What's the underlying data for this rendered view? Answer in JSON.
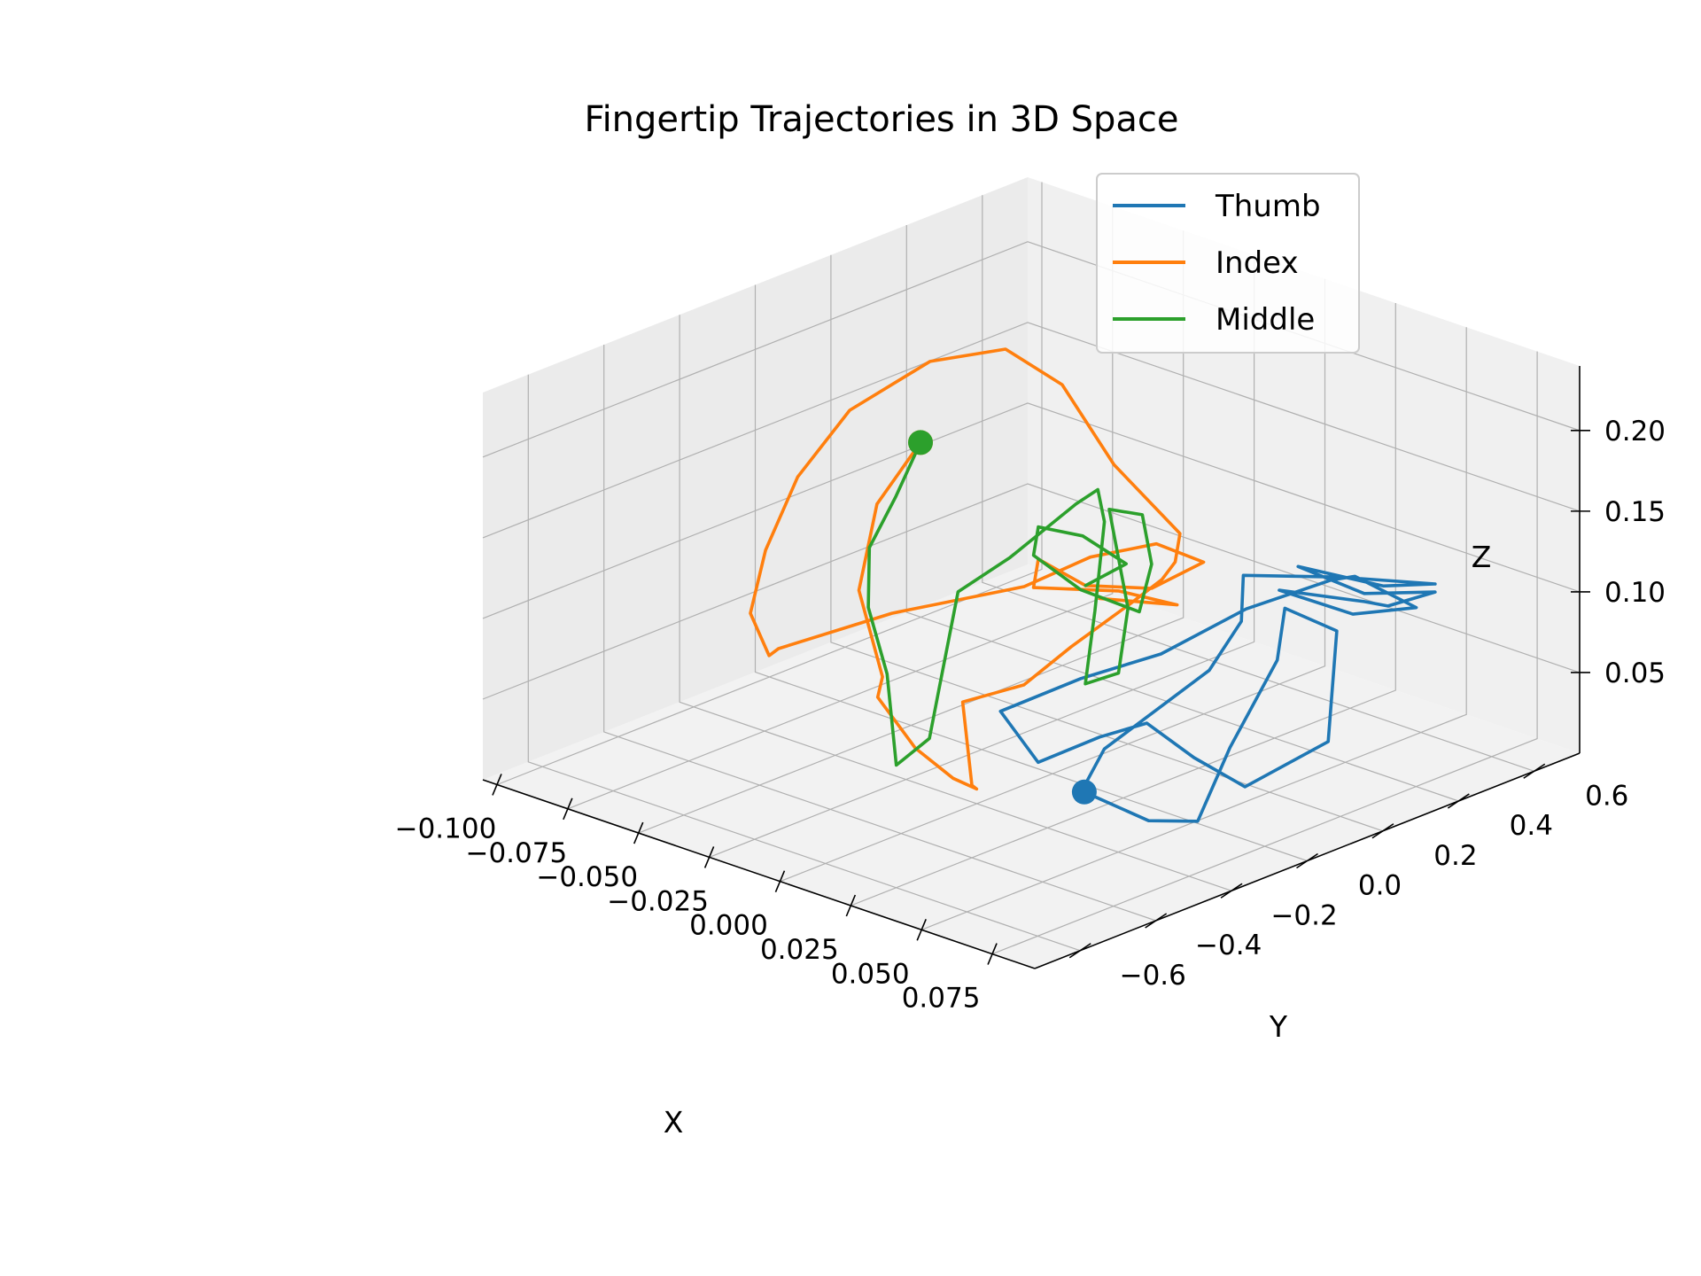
{
  "chart_data": {
    "type": "line",
    "title": "Fingertip Trajectories in 3D Space",
    "xlabel": "X",
    "ylabel": "Y",
    "zlabel": "Z",
    "x_ticks": [
      "−0.100",
      "−0.075",
      "−0.050",
      "−0.025",
      "0.000",
      "0.025",
      "0.050",
      "0.075"
    ],
    "y_ticks": [
      "−0.6",
      "−0.4",
      "−0.2",
      "0.0",
      "0.2",
      "0.4",
      "0.6"
    ],
    "z_ticks": [
      "0.05",
      "0.10",
      "0.15",
      "0.20"
    ],
    "xlim": [
      -0.105,
      0.09
    ],
    "ylim": [
      -0.72,
      0.72
    ],
    "zlim": [
      0.0,
      0.24
    ],
    "grid": true,
    "legend_position": "top-right",
    "series": [
      {
        "name": "Thumb",
        "color": "#1f77b4",
        "points": [
          [
            0.038,
            -0.2,
            0.03
          ],
          [
            0.05,
            -0.12,
            0.012
          ],
          [
            0.058,
            -0.05,
            0.01
          ],
          [
            0.052,
            0.08,
            0.04
          ],
          [
            0.05,
            0.22,
            0.08
          ],
          [
            0.042,
            0.3,
            0.1
          ],
          [
            0.055,
            0.34,
            0.09
          ],
          [
            0.06,
            0.28,
            0.03
          ],
          [
            0.052,
            0.12,
            0.012
          ],
          [
            0.05,
            0.0,
            0.04
          ],
          [
            0.04,
            -0.05,
            0.06
          ],
          [
            0.03,
            -0.1,
            0.05
          ],
          [
            0.015,
            -0.15,
            0.03
          ],
          [
            -0.005,
            -0.1,
            0.045
          ],
          [
            0.01,
            0.0,
            0.065
          ],
          [
            0.025,
            0.1,
            0.08
          ],
          [
            0.035,
            0.25,
            0.1
          ],
          [
            0.045,
            0.4,
            0.11
          ],
          [
            0.04,
            0.5,
            0.1
          ],
          [
            0.055,
            0.55,
            0.085
          ],
          [
            0.05,
            0.42,
            0.09
          ],
          [
            0.04,
            0.3,
            0.11
          ],
          [
            0.05,
            0.45,
            0.095
          ],
          [
            0.045,
            0.55,
            0.08
          ],
          [
            0.055,
            0.6,
            0.09
          ],
          [
            0.05,
            0.45,
            0.1
          ],
          [
            0.04,
            0.35,
            0.12
          ],
          [
            0.05,
            0.5,
            0.1
          ],
          [
            0.055,
            0.6,
            0.095
          ],
          [
            0.045,
            0.42,
            0.11
          ],
          [
            0.03,
            0.28,
            0.115
          ],
          [
            0.04,
            0.2,
            0.1
          ],
          [
            0.042,
            0.1,
            0.08
          ],
          [
            0.025,
            -0.05,
            0.035
          ],
          [
            0.03,
            -0.15,
            0.02
          ],
          [
            0.04,
            -0.2,
            0.03
          ],
          [
            0.038,
            -0.2,
            0.03
          ]
        ]
      },
      {
        "name": "Index",
        "color": "#ff7f0e",
        "points": [
          [
            -0.06,
            0.1,
            0.16
          ],
          [
            -0.062,
            0.0,
            0.13
          ],
          [
            -0.055,
            -0.1,
            0.09
          ],
          [
            -0.04,
            -0.15,
            0.05
          ],
          [
            -0.035,
            -0.2,
            0.045
          ],
          [
            -0.015,
            -0.25,
            0.03
          ],
          [
            0.005,
            -0.3,
            0.028
          ],
          [
            0.02,
            -0.35,
            0.035
          ],
          [
            0.025,
            -0.4,
            0.045
          ],
          [
            -0.005,
            -0.2,
            0.06
          ],
          [
            0.01,
            -0.15,
            0.075
          ],
          [
            0.02,
            -0.1,
            0.1
          ],
          [
            0.03,
            -0.02,
            0.125
          ],
          [
            0.032,
            0.05,
            0.135
          ],
          [
            0.03,
            0.1,
            0.14
          ],
          [
            0.025,
            0.15,
            0.15
          ],
          [
            -0.005,
            0.2,
            0.17
          ],
          [
            -0.03,
            0.25,
            0.2
          ],
          [
            -0.05,
            0.25,
            0.21
          ],
          [
            -0.07,
            0.2,
            0.195
          ],
          [
            -0.085,
            0.1,
            0.165
          ],
          [
            -0.09,
            0.0,
            0.13
          ],
          [
            -0.088,
            -0.1,
            0.095
          ],
          [
            -0.08,
            -0.2,
            0.07
          ],
          [
            -0.06,
            -0.3,
            0.065
          ],
          [
            -0.05,
            -0.35,
            0.08
          ],
          [
            -0.03,
            -0.2,
            0.1
          ],
          [
            -0.01,
            0.0,
            0.11
          ],
          [
            0.0,
            0.1,
            0.125
          ],
          [
            0.01,
            0.2,
            0.13
          ],
          [
            0.02,
            0.25,
            0.12
          ],
          [
            0.015,
            0.15,
            0.11
          ],
          [
            0.005,
            0.05,
            0.115
          ],
          [
            -0.005,
            0.0,
            0.13
          ],
          [
            0.0,
            -0.05,
            0.12
          ],
          [
            0.01,
            0.1,
            0.11
          ],
          [
            0.02,
            0.18,
            0.1
          ],
          [
            0.01,
            0.05,
            0.11
          ]
        ]
      },
      {
        "name": "Middle",
        "color": "#2ca02c",
        "points": [
          [
            -0.06,
            0.1,
            0.16
          ],
          [
            -0.062,
            0.05,
            0.13
          ],
          [
            -0.058,
            -0.05,
            0.11
          ],
          [
            -0.045,
            -0.15,
            0.09
          ],
          [
            -0.025,
            -0.25,
            0.07
          ],
          [
            -0.01,
            -0.35,
            0.06
          ],
          [
            0.005,
            -0.45,
            0.05
          ],
          [
            0.01,
            -0.4,
            0.065
          ],
          [
            0.0,
            -0.3,
            0.08
          ],
          [
            -0.01,
            -0.2,
            0.095
          ],
          [
            -0.02,
            -0.1,
            0.11
          ],
          [
            -0.015,
            0.0,
            0.125
          ],
          [
            -0.01,
            0.05,
            0.14
          ],
          [
            -0.005,
            0.1,
            0.155
          ],
          [
            0.0,
            0.12,
            0.165
          ],
          [
            0.005,
            0.1,
            0.15
          ],
          [
            0.01,
            0.05,
            0.13
          ],
          [
            0.015,
            0.0,
            0.11
          ],
          [
            0.02,
            -0.05,
            0.095
          ],
          [
            0.025,
            -0.1,
            0.08
          ],
          [
            0.03,
            -0.05,
            0.085
          ],
          [
            0.02,
            0.05,
            0.11
          ],
          [
            0.01,
            0.1,
            0.13
          ],
          [
            0.0,
            0.15,
            0.15
          ],
          [
            0.005,
            0.2,
            0.145
          ],
          [
            0.015,
            0.15,
            0.125
          ],
          [
            0.02,
            0.08,
            0.105
          ],
          [
            0.01,
            0.0,
            0.12
          ],
          [
            0.0,
            -0.05,
            0.14
          ],
          [
            -0.005,
            0.0,
            0.15
          ],
          [
            0.0,
            0.08,
            0.14
          ],
          [
            0.01,
            0.12,
            0.125
          ],
          [
            0.005,
            0.05,
            0.115
          ]
        ]
      }
    ],
    "start_markers": [
      {
        "series": "Thumb",
        "point": [
          0.038,
          -0.2,
          0.03
        ]
      },
      {
        "series": "Index",
        "point": [
          -0.06,
          0.1,
          0.16
        ]
      },
      {
        "series": "Middle",
        "point": [
          -0.06,
          0.1,
          0.16
        ]
      }
    ]
  }
}
